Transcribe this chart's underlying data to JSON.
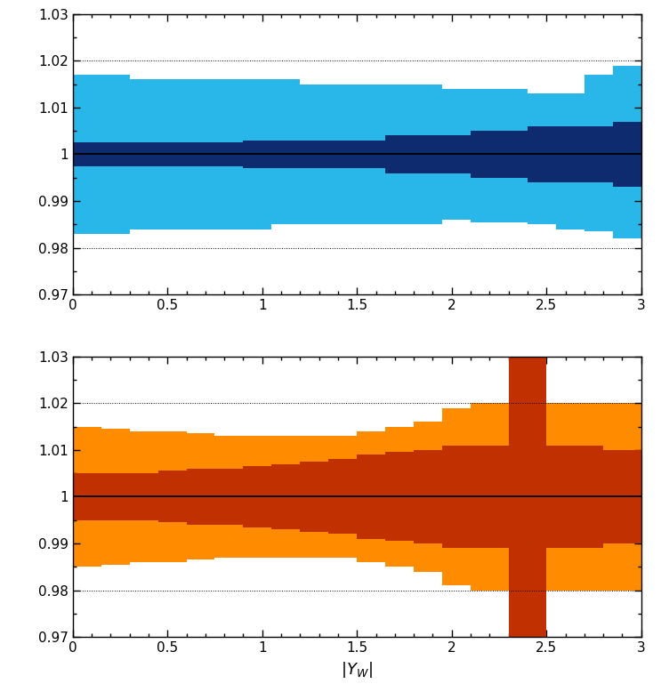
{
  "xlim": [
    0,
    3
  ],
  "ylim": [
    0.97,
    1.03
  ],
  "yticks": [
    0.97,
    0.98,
    0.99,
    1.0,
    1.01,
    1.02,
    1.03
  ],
  "ytick_labels": [
    "0.97",
    "0.98",
    "0.99",
    "1",
    "1.01",
    "1.02",
    "1.03"
  ],
  "xticks": [
    0,
    0.5,
    1.0,
    1.5,
    2.0,
    2.5,
    3.0
  ],
  "xtick_labels": [
    "0",
    "0.5",
    "1",
    "1.5",
    "2",
    "2.5",
    "3"
  ],
  "xlabel": "$|Y_{W}|$",
  "dotted_lines": [
    1.03,
    1.02,
    0.98,
    0.97
  ],
  "blue_light_color": "#29B6E8",
  "blue_dark_color": "#0D2B6E",
  "orange_light_color": "#FF8C00",
  "orange_dark_color": "#C03000",
  "line_color": "#000000",
  "top_plot": {
    "bin_edges": [
      0.0,
      0.15,
      0.3,
      0.45,
      0.6,
      0.75,
      0.9,
      1.05,
      1.2,
      1.35,
      1.5,
      1.65,
      1.8,
      1.95,
      2.1,
      2.25,
      2.4,
      2.55,
      2.7,
      2.85,
      3.0
    ],
    "light_upper": [
      1.017,
      1.017,
      1.016,
      1.016,
      1.016,
      1.016,
      1.016,
      1.016,
      1.015,
      1.015,
      1.015,
      1.015,
      1.015,
      1.014,
      1.014,
      1.014,
      1.013,
      1.013,
      1.017,
      1.019
    ],
    "light_lower": [
      0.983,
      0.983,
      0.984,
      0.984,
      0.984,
      0.984,
      0.984,
      0.985,
      0.985,
      0.985,
      0.985,
      0.985,
      0.985,
      0.986,
      0.9855,
      0.9855,
      0.985,
      0.984,
      0.9835,
      0.982
    ],
    "dark_upper": [
      1.0025,
      1.0025,
      1.0025,
      1.0025,
      1.0025,
      1.0025,
      1.003,
      1.003,
      1.003,
      1.003,
      1.003,
      1.004,
      1.004,
      1.004,
      1.005,
      1.005,
      1.006,
      1.006,
      1.006,
      1.007
    ],
    "dark_lower": [
      0.9975,
      0.9975,
      0.9975,
      0.9975,
      0.9975,
      0.9975,
      0.997,
      0.997,
      0.997,
      0.997,
      0.997,
      0.996,
      0.996,
      0.996,
      0.995,
      0.995,
      0.994,
      0.994,
      0.994,
      0.993
    ]
  },
  "bottom_plot": {
    "bin_edges": [
      0.0,
      0.15,
      0.3,
      0.45,
      0.6,
      0.75,
      0.9,
      1.05,
      1.2,
      1.35,
      1.5,
      1.65,
      1.8,
      1.95,
      2.1,
      2.3,
      2.5,
      2.65,
      2.8,
      3.0
    ],
    "light_upper": [
      1.015,
      1.0145,
      1.014,
      1.014,
      1.0135,
      1.013,
      1.013,
      1.013,
      1.013,
      1.013,
      1.014,
      1.015,
      1.016,
      1.019,
      1.02,
      1.034,
      1.02,
      1.02,
      1.02
    ],
    "light_lower": [
      0.985,
      0.9855,
      0.986,
      0.986,
      0.9865,
      0.987,
      0.987,
      0.987,
      0.987,
      0.987,
      0.986,
      0.985,
      0.984,
      0.981,
      0.98,
      0.966,
      0.98,
      0.98,
      0.98
    ],
    "dark_upper": [
      1.005,
      1.005,
      1.005,
      1.0055,
      1.006,
      1.006,
      1.0065,
      1.007,
      1.0075,
      1.008,
      1.009,
      1.0095,
      1.01,
      1.011,
      1.011,
      1.034,
      1.011,
      1.011,
      1.01
    ],
    "dark_lower": [
      0.995,
      0.995,
      0.995,
      0.9945,
      0.994,
      0.994,
      0.9935,
      0.993,
      0.9925,
      0.992,
      0.991,
      0.9905,
      0.99,
      0.989,
      0.989,
      0.966,
      0.989,
      0.989,
      0.99
    ]
  }
}
